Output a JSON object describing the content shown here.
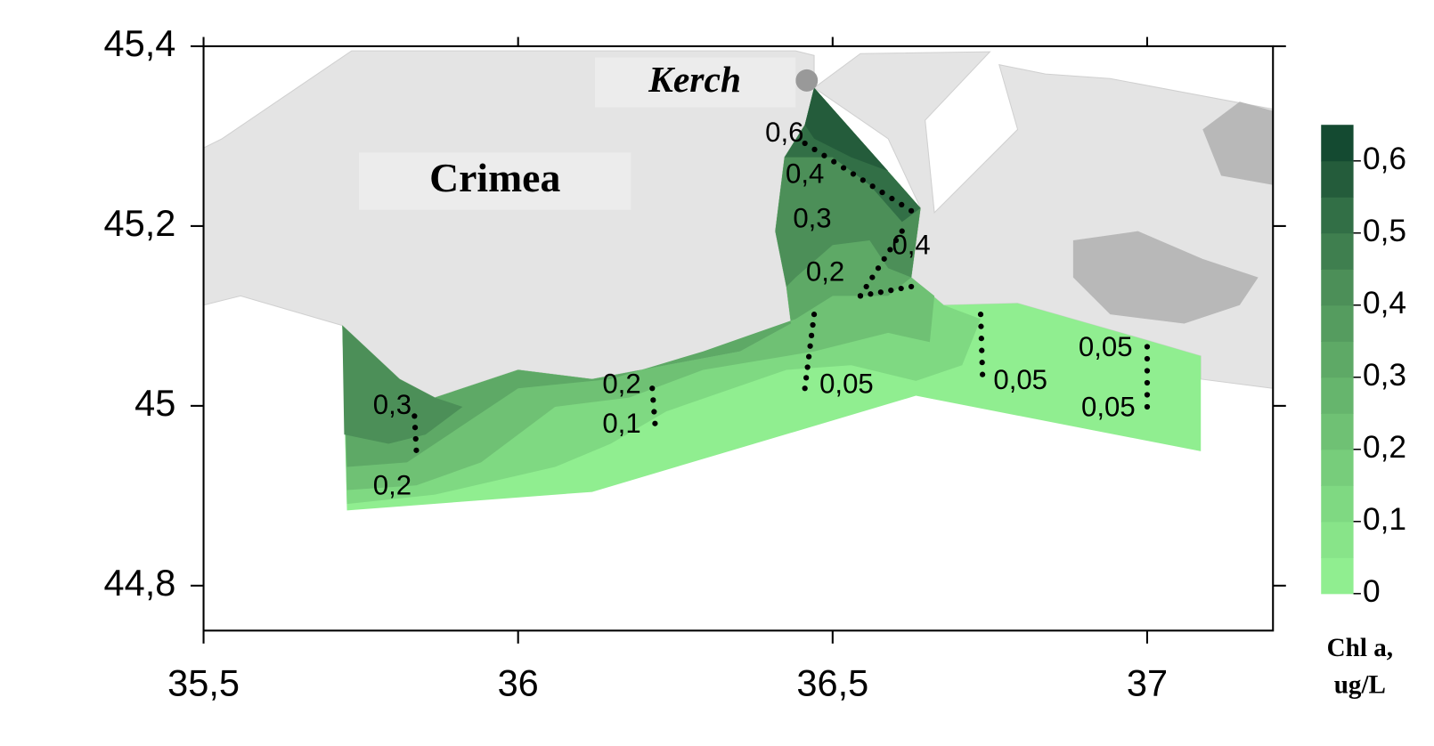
{
  "map": {
    "xlim": [
      35.5,
      37.2
    ],
    "ylim": [
      44.75,
      45.4
    ],
    "xticks": [
      {
        "value": 35.5,
        "label": "35,5"
      },
      36,
      {
        "value": 36.5,
        "label": "36,5"
      },
      37
    ],
    "yticks": [
      {
        "value": 44.8,
        "label": "44,8"
      },
      45,
      {
        "value": 45.2,
        "label": "45,2"
      },
      {
        "value": 45.4,
        "label": "45,4"
      }
    ],
    "places": [
      "Kerch",
      "Crimea"
    ],
    "contour_labels": [
      {
        "value": 0.6,
        "label": "0,6"
      },
      {
        "value": 0.4,
        "label": "0,4"
      },
      {
        "value": 0.3,
        "label": "0,3"
      },
      {
        "value": 0.4,
        "label": "0,4"
      },
      {
        "value": 0.2,
        "label": "0,2"
      },
      {
        "value": 0.05,
        "label": "0,05"
      },
      {
        "value": 0.05,
        "label": "0,05"
      },
      {
        "value": 0.05,
        "label": "0,05"
      },
      {
        "value": 0.05,
        "label": "0,05"
      },
      {
        "value": 0.2,
        "label": "0,2"
      },
      {
        "value": 0.1,
        "label": "0,1"
      },
      {
        "value": 0.3,
        "label": "0,3"
      },
      {
        "value": 0.2,
        "label": "0,2"
      }
    ],
    "colorbar": {
      "title": [
        "Chl a,",
        "ug/L"
      ],
      "lim": [
        0,
        0.65
      ],
      "ticks": [
        0,
        {
          "value": 0.1,
          "label": "0,1"
        },
        {
          "value": 0.2,
          "label": "0,2"
        },
        {
          "value": 0.3,
          "label": "0,3"
        },
        {
          "value": 0.4,
          "label": "0,4"
        },
        {
          "value": 0.5,
          "label": "0,5"
        },
        {
          "value": 0.6,
          "label": "0,6"
        }
      ],
      "colors": [
        "#90ee90",
        "#88e489",
        "#7fd982",
        "#77cd7b",
        "#6fc174",
        "#66b56d",
        "#5ea966",
        "#559c5f",
        "#4c8f58",
        "#3f7f4f",
        "#326f46",
        "#245c3b",
        "#144a31"
      ]
    }
  }
}
